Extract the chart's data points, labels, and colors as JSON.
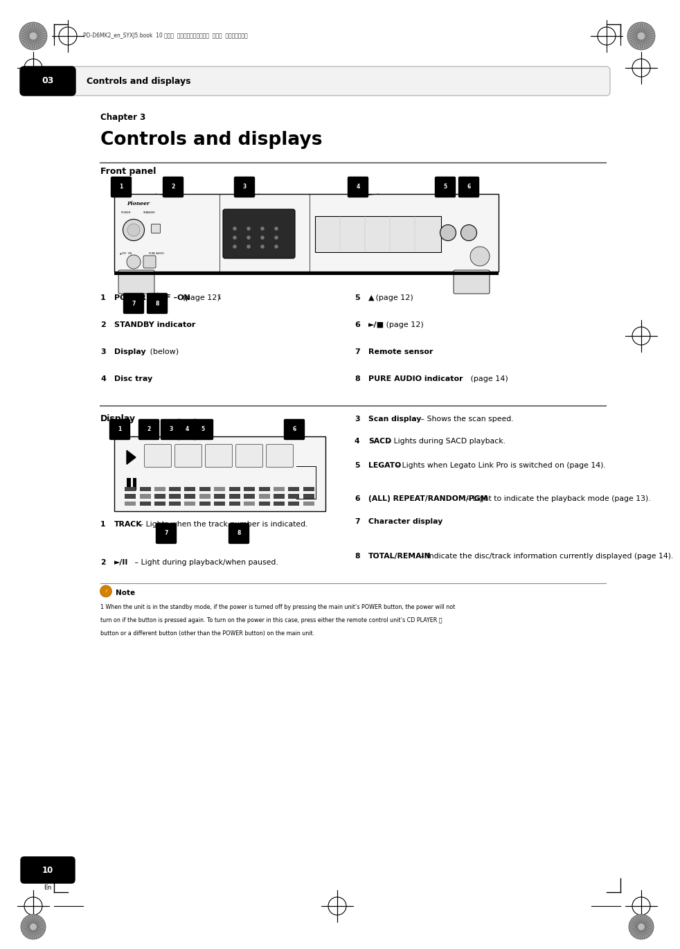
{
  "bg_color": "#ffffff",
  "page_width": 9.54,
  "page_height": 13.5,
  "header_text": "PD-D6MK2_en_SYXJ5.book  10 ページ  ２００９年４月１５日  水曜日  午後５時２３分",
  "chapter_num": "03",
  "chapter_title": "Controls and displays",
  "section_chapter": "Chapter 3",
  "section_title": "Controls and displays",
  "front_panel_title": "Front panel",
  "display_title": "Display",
  "front_panel_items_left": [
    {
      "num": "1",
      "bold": "POWER ▪OFF –ON",
      "rest": " (page 12)",
      "super": "1"
    },
    {
      "num": "2",
      "bold": "STANDBY indicator",
      "rest": ""
    },
    {
      "num": "3",
      "bold": "Display",
      "rest": " (below)"
    },
    {
      "num": "4",
      "bold": "Disc tray",
      "rest": ""
    }
  ],
  "front_panel_items_right": [
    {
      "num": "5",
      "bold": "▲",
      "rest": " (page 12)"
    },
    {
      "num": "6",
      "bold": "►/■",
      "rest": " (page 12)"
    },
    {
      "num": "7",
      "bold": "Remote sensor",
      "rest": ""
    },
    {
      "num": "8",
      "bold": "PURE AUDIO indicator",
      "rest": " (page 14)"
    }
  ],
  "display_items_left": [
    {
      "num": "1",
      "bold": "TRACK",
      "rest": " – Lights when the track number is indicated."
    },
    {
      "num": "2",
      "bold": "►/II",
      "rest": " – Light during playback/when paused."
    }
  ],
  "display_items_right": [
    {
      "num": "3",
      "bold": "Scan display",
      "rest": " – Shows the scan speed."
    },
    {
      "num": "4",
      "bold": "SACD",
      "rest": " – Lights during SACD playback."
    },
    {
      "num": "5",
      "bold": "LEGATO",
      "rest": " – Lights when Legato Link Pro is switched on (page 14)."
    },
    {
      "num": "6",
      "bold": "(ALL) REPEAT/RANDOM/PGM",
      "rest": " – Light to indicate the playback mode (page 13)."
    },
    {
      "num": "7",
      "bold": "Character display",
      "rest": ""
    },
    {
      "num": "8",
      "bold": "TOTAL/REMAIN",
      "rest": " – Indicate the disc/track information currently displayed (page 14)."
    }
  ],
  "note_title": "Note",
  "note_line1": "1 When the unit is in the standby mode, if the power is turned off by pressing the main unit’s POWER button, the power will not",
  "note_line2": "turn on if the button is pressed again. To turn on the power in this case, press either the remote control unit’s CD PLAYER ⏻",
  "note_line3": "button or a different button (other than the POWER button) on the main unit.",
  "page_num": "10",
  "page_lang": "En"
}
